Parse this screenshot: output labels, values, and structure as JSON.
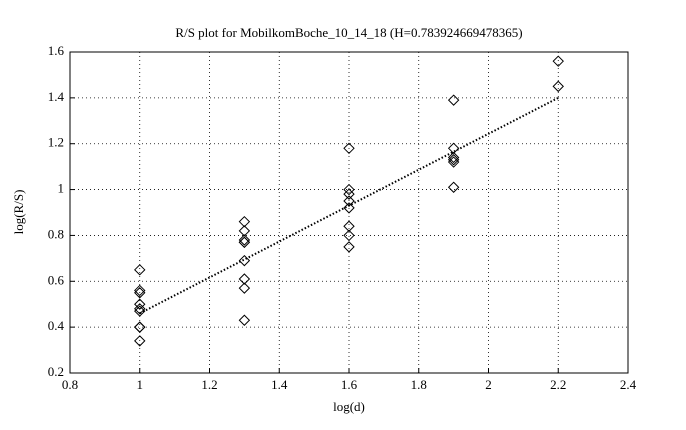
{
  "chart_data": {
    "type": "scatter",
    "title": "R/S plot for MobilkomBoche_10_14_18 (H=0.783924669478365)",
    "x_label": "log(d)",
    "y_label": "log(R/S)",
    "x": [
      1,
      1,
      1,
      1,
      1,
      1,
      1,
      1,
      1,
      1.3,
      1.3,
      1.3,
      1.3,
      1.3,
      1.3,
      1.3,
      1.3,
      1.3,
      1.6,
      1.6,
      1.6,
      1.6,
      1.6,
      1.6,
      1.6,
      1.6,
      1.9,
      1.9,
      1.9,
      1.9,
      1.9,
      1.9,
      2.2,
      2.2
    ],
    "values": [
      0.65,
      0.56,
      0.55,
      0.5,
      0.48,
      0.47,
      0.4,
      0.4,
      0.34,
      0.86,
      0.82,
      0.78,
      0.77,
      0.77,
      0.69,
      0.61,
      0.57,
      0.43,
      1.18,
      1.0,
      0.98,
      0.95,
      0.92,
      0.84,
      0.8,
      0.75,
      1.39,
      1.18,
      1.14,
      1.13,
      1.12,
      1.01,
      1.56,
      1.45
    ],
    "marker": "diamond",
    "color": "#000000",
    "fit_line": {
      "x": [
        1,
        2.2
      ],
      "values": [
        0.46,
        1.4
      ],
      "style": "dotted",
      "color": "#000000"
    },
    "xlim": [
      0.8,
      2.4
    ],
    "xticks": [
      0.8,
      1,
      1.2,
      1.4,
      1.6,
      1.8,
      2,
      2.2,
      2.4
    ],
    "ylim": [
      0.2,
      1.6
    ],
    "yticks": [
      0.2,
      0.4,
      0.6,
      0.8,
      1,
      1.2,
      1.4,
      1.6
    ],
    "grid": true
  }
}
